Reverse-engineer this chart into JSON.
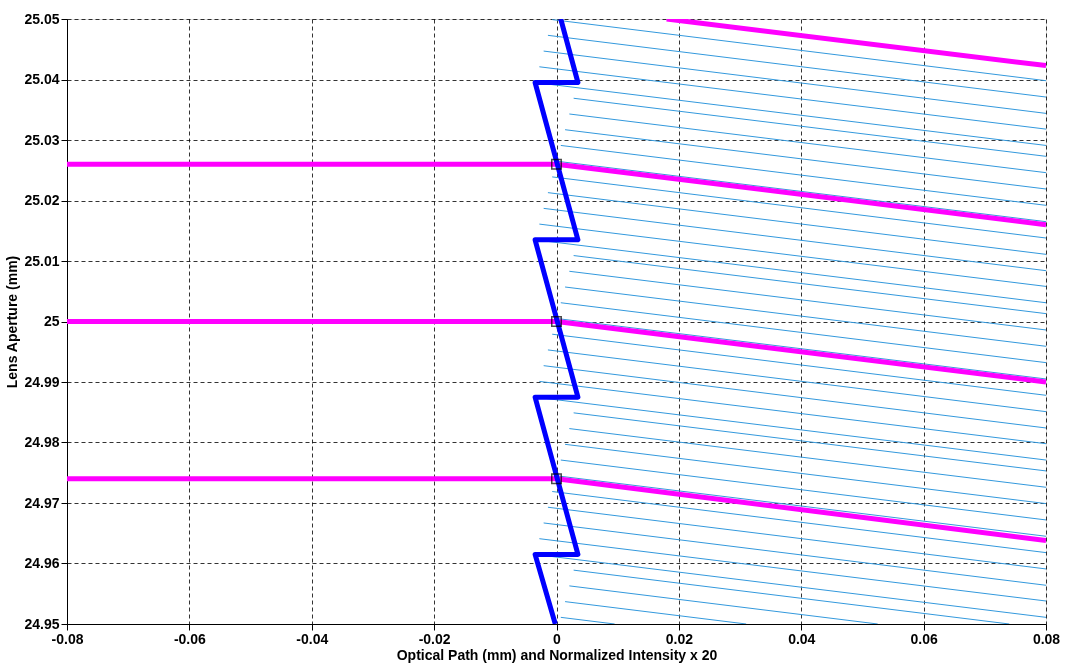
{
  "chart_data": {
    "type": "line",
    "xlabel": "Optical Path (mm) and Normalized Intensity x 20",
    "ylabel": "Lens Aperture (mm)",
    "xlim": [
      -0.08,
      0.08
    ],
    "xticks": [
      -0.08,
      -0.06,
      -0.04,
      -0.02,
      0,
      0.02,
      0.04,
      0.06,
      0.08
    ],
    "ylim": [
      24.95,
      25.05
    ],
    "yticks": [
      24.95,
      24.96,
      24.97,
      24.98,
      24.99,
      25,
      25.01,
      25.02,
      25.03,
      25.04,
      25.05
    ],
    "grid": true,
    "line_style": "dashed",
    "series": [
      {
        "color": "#0000ff",
        "line_style": "solid",
        "x": [
          0.0007,
          0.0035,
          -0.0035,
          0.0035,
          -0.0035,
          0.0035,
          -0.0035,
          0.0035,
          -0.0035,
          -0.0002
        ],
        "values": [
          25.05,
          25.0395,
          25.0395,
          25.0135,
          25.0135,
          24.9875,
          24.9875,
          24.9615,
          24.9615,
          24.95
        ]
      },
      {
        "color": "#ff00ff",
        "line_style": "solid",
        "x": [
          0.018,
          0.08
        ],
        "values": [
          25.05,
          25.0423
        ]
      },
      {
        "color": "#ff00ff",
        "line_style": "solid",
        "x": [
          -0.08,
          0,
          0.08
        ],
        "values": [
          25.026,
          25.026,
          25.016
        ]
      },
      {
        "color": "#ff00ff",
        "line_style": "solid",
        "x": [
          -0.08,
          0,
          0.08
        ],
        "values": [
          25,
          25,
          24.99
        ]
      },
      {
        "color": "#ff00ff",
        "line_style": "solid",
        "x": [
          -0.08,
          0,
          0.08
        ],
        "values": [
          24.974,
          24.974,
          24.9638
        ]
      },
      {
        "type": "scatter",
        "color": "#000000",
        "marker": "square",
        "x": [
          0,
          0,
          0
        ],
        "values": [
          25.026,
          25,
          24.974
        ]
      },
      {
        "color": "#3399dd",
        "line_style": "solid",
        "x": [
          0.0007,
          0.0095
        ],
        "values": [
          24.9511,
          24.95
        ]
      },
      {
        "color": "#3399dd",
        "line_style": "solid",
        "x": [
          0.0014,
          0.031
        ],
        "values": [
          24.9537,
          24.95
        ]
      },
      {
        "color": "#3399dd",
        "line_style": "solid",
        "x": [
          0.0021,
          0.0525
        ],
        "values": [
          24.9563,
          24.95
        ]
      },
      {
        "color": "#3399dd",
        "line_style": "solid",
        "x": [
          0.0028,
          0.074
        ],
        "values": [
          24.9589,
          24.95
        ]
      },
      {
        "color": "#3399dd",
        "line_style": "solid",
        "x": [
          -0.0035,
          0.08
        ],
        "values": [
          24.9615,
          24.9511
        ]
      },
      {
        "color": "#3399dd",
        "line_style": "solid",
        "x": [
          -0.0028,
          0.08
        ],
        "values": [
          24.9641,
          24.9538
        ]
      },
      {
        "color": "#3399dd",
        "line_style": "solid",
        "x": [
          -0.0021,
          0.08
        ],
        "values": [
          24.9667,
          24.9564
        ]
      },
      {
        "color": "#3399dd",
        "line_style": "solid",
        "x": [
          -0.0014,
          0.08
        ],
        "values": [
          24.9693,
          24.9591
        ]
      },
      {
        "color": "#3399dd",
        "line_style": "solid",
        "x": [
          -0.0007,
          0.08
        ],
        "values": [
          24.9719,
          24.9618
        ]
      },
      {
        "color": "#3399dd",
        "line_style": "solid",
        "x": [
          0,
          0.08
        ],
        "values": [
          24.9745,
          24.9645
        ]
      },
      {
        "color": "#3399dd",
        "line_style": "solid",
        "x": [
          0.0007,
          0.08
        ],
        "values": [
          24.9771,
          24.9672
        ]
      },
      {
        "color": "#3399dd",
        "line_style": "solid",
        "x": [
          0.0014,
          0.08
        ],
        "values": [
          24.9797,
          24.9699
        ]
      },
      {
        "color": "#3399dd",
        "line_style": "solid",
        "x": [
          0.0021,
          0.08
        ],
        "values": [
          24.9823,
          24.9726
        ]
      },
      {
        "color": "#3399dd",
        "line_style": "solid",
        "x": [
          0.0028,
          0.08
        ],
        "values": [
          24.9849,
          24.9753
        ]
      },
      {
        "color": "#3399dd",
        "line_style": "solid",
        "x": [
          -0.0035,
          0.08
        ],
        "values": [
          24.9875,
          24.9771
        ]
      },
      {
        "color": "#3399dd",
        "line_style": "solid",
        "x": [
          -0.0028,
          0.08
        ],
        "values": [
          24.9901,
          24.9798
        ]
      },
      {
        "color": "#3399dd",
        "line_style": "solid",
        "x": [
          -0.0021,
          0.08
        ],
        "values": [
          24.9927,
          24.9824
        ]
      },
      {
        "color": "#3399dd",
        "line_style": "solid",
        "x": [
          -0.0014,
          0.08
        ],
        "values": [
          24.9953,
          24.9851
        ]
      },
      {
        "color": "#3399dd",
        "line_style": "solid",
        "x": [
          -0.0007,
          0.08
        ],
        "values": [
          24.9979,
          24.9878
        ]
      },
      {
        "color": "#3399dd",
        "line_style": "solid",
        "x": [
          0,
          0.08
        ],
        "values": [
          25.0005,
          24.9905
        ]
      },
      {
        "color": "#3399dd",
        "line_style": "solid",
        "x": [
          0.0007,
          0.08
        ],
        "values": [
          25.0031,
          24.9932
        ]
      },
      {
        "color": "#3399dd",
        "line_style": "solid",
        "x": [
          0.0014,
          0.08
        ],
        "values": [
          25.0057,
          24.9959
        ]
      },
      {
        "color": "#3399dd",
        "line_style": "solid",
        "x": [
          0.0021,
          0.08
        ],
        "values": [
          25.0083,
          24.9986
        ]
      },
      {
        "color": "#3399dd",
        "line_style": "solid",
        "x": [
          0.0028,
          0.08
        ],
        "values": [
          25.0109,
          25.0013
        ]
      },
      {
        "color": "#3399dd",
        "line_style": "solid",
        "x": [
          -0.0035,
          0.08
        ],
        "values": [
          25.0135,
          25.0031
        ]
      },
      {
        "color": "#3399dd",
        "line_style": "solid",
        "x": [
          -0.0028,
          0.08
        ],
        "values": [
          25.0161,
          25.0058
        ]
      },
      {
        "color": "#3399dd",
        "line_style": "solid",
        "x": [
          -0.0021,
          0.08
        ],
        "values": [
          25.0187,
          25.0084
        ]
      },
      {
        "color": "#3399dd",
        "line_style": "solid",
        "x": [
          -0.0014,
          0.08
        ],
        "values": [
          25.0213,
          25.0111
        ]
      },
      {
        "color": "#3399dd",
        "line_style": "solid",
        "x": [
          -0.0007,
          0.08
        ],
        "values": [
          25.0239,
          25.0138
        ]
      },
      {
        "color": "#3399dd",
        "line_style": "solid",
        "x": [
          0,
          0.08
        ],
        "values": [
          25.0265,
          25.0165
        ]
      },
      {
        "color": "#3399dd",
        "line_style": "solid",
        "x": [
          0.0007,
          0.08
        ],
        "values": [
          25.0291,
          25.0192
        ]
      },
      {
        "color": "#3399dd",
        "line_style": "solid",
        "x": [
          0.0014,
          0.08
        ],
        "values": [
          25.0317,
          25.0219
        ]
      },
      {
        "color": "#3399dd",
        "line_style": "solid",
        "x": [
          0.0021,
          0.08
        ],
        "values": [
          25.0343,
          25.0246
        ]
      },
      {
        "color": "#3399dd",
        "line_style": "solid",
        "x": [
          0.0028,
          0.08
        ],
        "values": [
          25.0369,
          25.0273
        ]
      },
      {
        "color": "#3399dd",
        "line_style": "solid",
        "x": [
          -0.0035,
          0.08
        ],
        "values": [
          25.0395,
          25.0291
        ]
      },
      {
        "color": "#3399dd",
        "line_style": "solid",
        "x": [
          -0.0028,
          0.08
        ],
        "values": [
          25.0421,
          25.0318
        ]
      },
      {
        "color": "#3399dd",
        "line_style": "solid",
        "x": [
          -0.0021,
          0.08
        ],
        "values": [
          25.0447,
          25.0344
        ]
      },
      {
        "color": "#3399dd",
        "line_style": "solid",
        "x": [
          -0.0014,
          0.08
        ],
        "values": [
          25.0473,
          25.0371
        ]
      },
      {
        "color": "#3399dd",
        "line_style": "solid",
        "x": [
          -0.0007,
          0.08
        ],
        "values": [
          25.0499,
          25.0398
        ]
      }
    ]
  }
}
